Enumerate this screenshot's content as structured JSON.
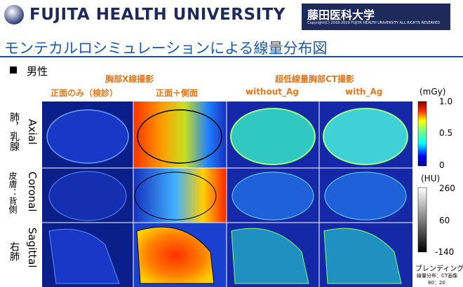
{
  "header": {
    "university": "FUJITA HEALTH UNIVERSITY",
    "university_jp": "藤田医科大学",
    "copyright": "Copyright(C) 2018-2019 FUJITA HEALTH UNIVERSITY  ALL RIGHTS RESERVED"
  },
  "title": "モンテカルロシミュレーションによる線量分布図",
  "section": "男性",
  "groups": [
    "胸部X線撮影",
    "超低線量胸部CT撮影"
  ],
  "columns": [
    "正面のみ（検診）",
    "正面＋側面",
    "without_Ag",
    "with_Ag"
  ],
  "rows": [
    {
      "plane": "Axial",
      "organ": "肺，乳腺"
    },
    {
      "plane": "Coronal",
      "organ": "皮膚：背側"
    },
    {
      "plane": "Sagittal",
      "organ": "右肺"
    }
  ],
  "dose_bar": {
    "unit": "(mGy)",
    "ticks": [
      "1.0",
      "0.5",
      "0"
    ]
  },
  "hu_bar": {
    "unit": "(HU)",
    "ticks": [
      "260",
      "60",
      "-140"
    ]
  },
  "footnote": [
    "ブレンディング",
    "線量分布：CT画像",
    "80：20"
  ]
}
